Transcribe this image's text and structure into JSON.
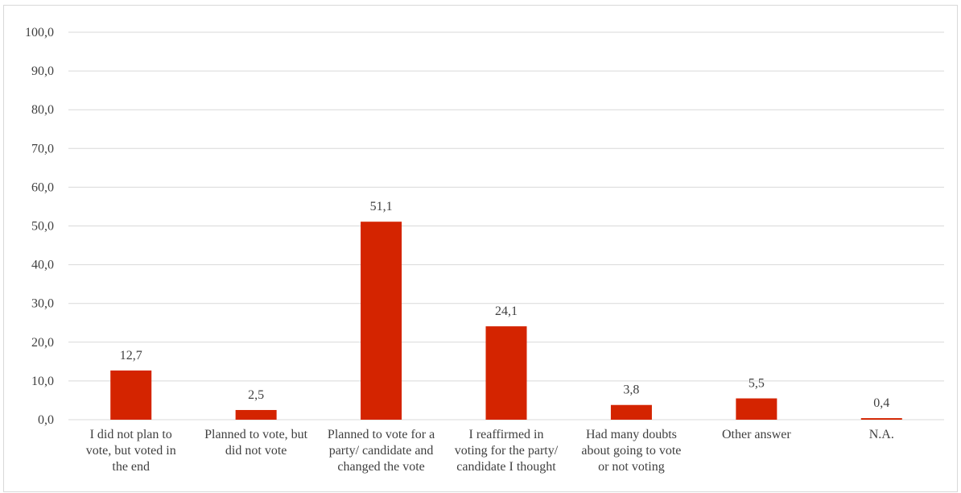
{
  "chart_data": {
    "type": "bar",
    "categories": [
      [
        "I did not plan to",
        "vote, but voted in",
        "the end"
      ],
      [
        "Planned to vote, but",
        "did not vote"
      ],
      [
        "Planned to vote for a",
        "party/ candidate and",
        "changed the vote"
      ],
      [
        "I reaffirmed in",
        "voting for the party/",
        "candidate I thought"
      ],
      [
        "Had many doubts",
        "about going to vote",
        "or not voting"
      ],
      [
        "Other answer"
      ],
      [
        "N.A."
      ]
    ],
    "values": [
      12.7,
      2.5,
      51.1,
      24.1,
      3.8,
      5.5,
      0.4
    ],
    "data_labels": [
      "12,7",
      "2,5",
      "51,1",
      "24,1",
      "3,8",
      "5,5",
      "0,4"
    ],
    "ylim": [
      0,
      100
    ],
    "yticks": [
      0,
      10,
      20,
      30,
      40,
      50,
      60,
      70,
      80,
      90,
      100
    ],
    "ytick_labels": [
      "0,0",
      "10,0",
      "20,0",
      "30,0",
      "40,0",
      "50,0",
      "60,0",
      "70,0",
      "80,0",
      "90,0",
      "100,0"
    ],
    "title": "",
    "xlabel": "",
    "ylabel": "",
    "grid": true,
    "legend": "none",
    "bar_color": "#D42400",
    "grid_color": "#D9D9D9",
    "text_color": "#404040"
  }
}
